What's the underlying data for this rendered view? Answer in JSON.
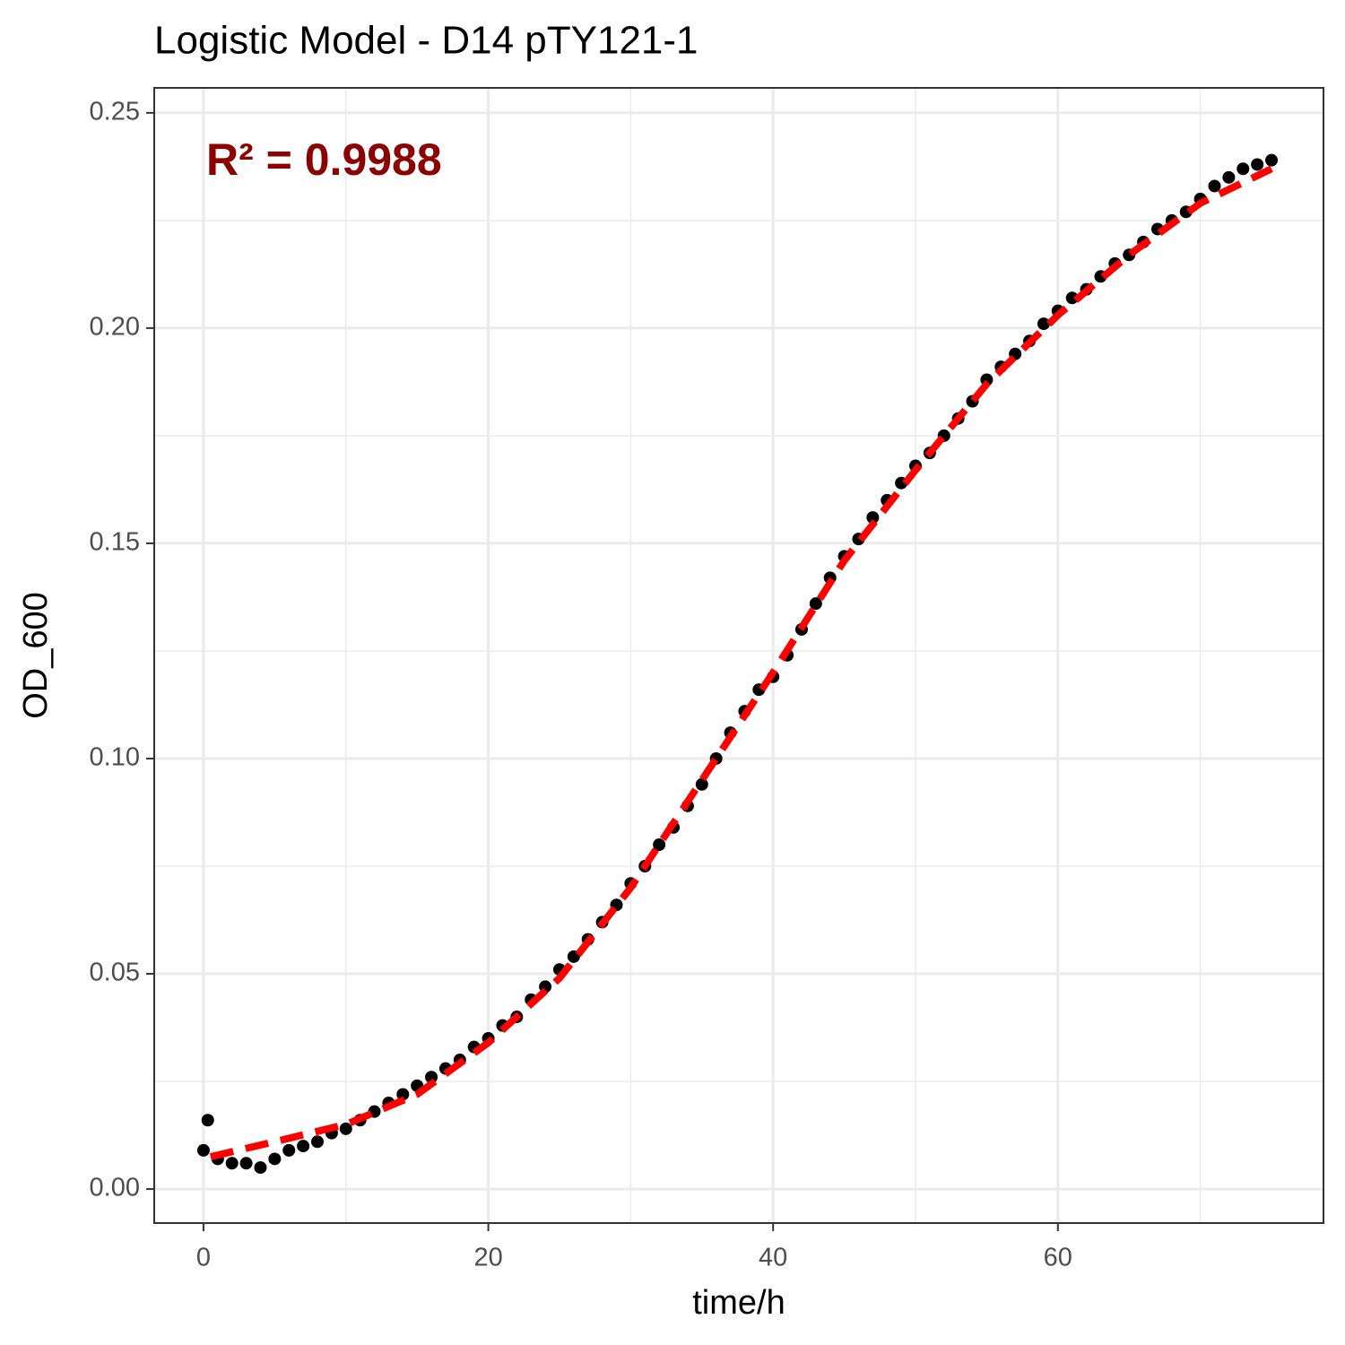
{
  "chart_data": {
    "type": "scatter",
    "title": "Logistic Model -  D14 pTY121-1",
    "x_label": "time/h",
    "y_label": "OD_600",
    "annotation": {
      "text": "R² = 0.9988",
      "color": "#8b0000"
    },
    "xlim": [
      -3.46,
      78.65
    ],
    "ylim": [
      -0.0079,
      0.2558
    ],
    "xticks": [
      0,
      20,
      40,
      60
    ],
    "yticks": [
      {
        "value": 0,
        "label": "0.00"
      },
      {
        "value": 0.05,
        "label": "0.05"
      },
      {
        "value": 0.1,
        "label": "0.10"
      },
      {
        "value": 0.15,
        "label": "0.15"
      },
      {
        "value": 0.2,
        "label": "0.20"
      },
      {
        "value": 0.25,
        "label": "0.25"
      }
    ],
    "x_minor_grid": [
      10,
      30,
      50,
      70
    ],
    "y_minor_grid": [
      0.025,
      0.075,
      0.125,
      0.175,
      0.225
    ],
    "grid": true,
    "x": [
      0,
      0.3,
      1,
      2,
      3,
      4,
      5,
      6,
      7,
      8,
      9,
      10,
      11,
      12,
      13,
      14,
      15,
      16,
      17,
      18,
      19,
      20,
      21,
      22,
      23,
      24,
      25,
      26,
      27,
      28,
      29,
      30,
      31,
      32,
      33,
      34,
      35,
      36,
      37,
      38,
      39,
      40,
      41,
      42,
      43,
      44,
      45,
      46,
      47,
      48,
      49,
      50,
      51,
      52,
      53,
      54,
      55,
      56,
      57,
      58,
      59,
      60,
      61,
      62,
      63,
      64,
      65,
      66,
      67,
      68,
      69,
      70,
      71,
      72,
      73,
      74,
      75
    ],
    "series": [
      {
        "color": "#000000",
        "values": [
          0.009,
          0.016,
          0.007,
          0.006,
          0.006,
          0.005,
          0.007,
          0.009,
          0.01,
          0.011,
          0.013,
          0.014,
          0.016,
          0.018,
          0.02,
          0.022,
          0.024,
          0.026,
          0.028,
          0.03,
          0.033,
          0.035,
          0.038,
          0.04,
          0.044,
          0.047,
          0.051,
          0.054,
          0.058,
          0.062,
          0.066,
          0.071,
          0.075,
          0.08,
          0.084,
          0.089,
          0.094,
          0.1,
          0.106,
          0.111,
          0.116,
          0.119,
          0.124,
          0.13,
          0.136,
          0.142,
          0.147,
          0.151,
          0.156,
          0.16,
          0.164,
          0.168,
          0.171,
          0.175,
          0.179,
          0.183,
          0.188,
          0.191,
          0.194,
          0.197,
          0.201,
          0.204,
          0.207,
          0.209,
          0.212,
          0.215,
          0.217,
          0.22,
          0.223,
          0.225,
          0.227,
          0.23,
          0.233,
          0.235,
          0.237,
          0.238,
          0.239
        ]
      }
    ],
    "fit": {
      "color": "#ff0000",
      "x": [
        0.5,
        5,
        10,
        15,
        20,
        25,
        30,
        35,
        40,
        45,
        50,
        55,
        60,
        65,
        70,
        75
      ],
      "values": [
        0.0075,
        0.011,
        0.015,
        0.022,
        0.034,
        0.049,
        0.07,
        0.095,
        0.12,
        0.146,
        0.167,
        0.187,
        0.203,
        0.217,
        0.229,
        0.237
      ]
    }
  }
}
